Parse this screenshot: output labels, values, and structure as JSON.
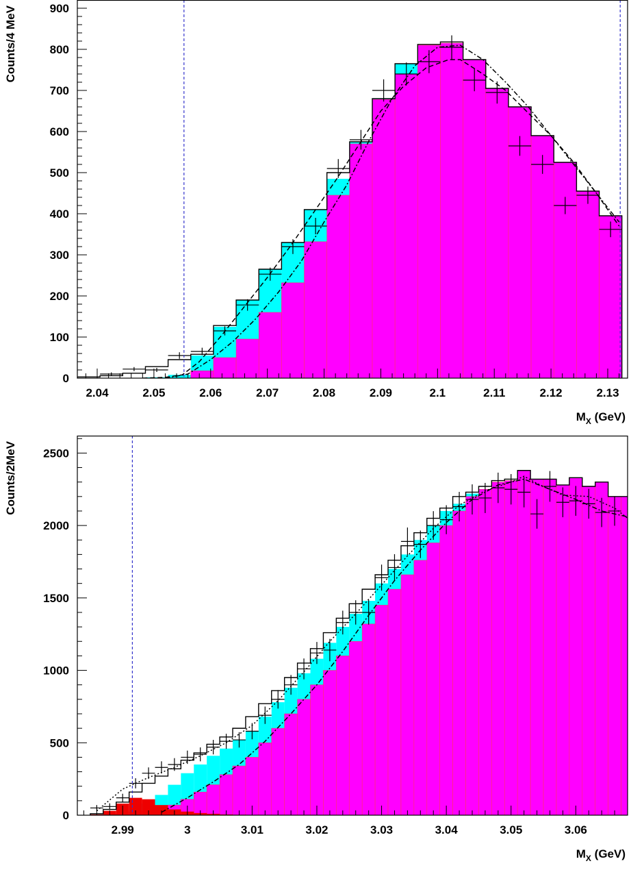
{
  "colors": {
    "signal": "#ff00ff",
    "band": "#00ffff",
    "background": "#ee0000",
    "frame": "#000000",
    "cut_line": "#3333cc"
  },
  "chart_data": [
    {
      "type": "histogram",
      "xlabel": "M",
      "xlabel_sub": "X",
      "xlabel_unit": " (GeV)",
      "ylabel": "Counts/4 MeV",
      "xlim": [
        2.0365,
        2.1335
      ],
      "ylim": [
        0,
        920
      ],
      "xticks": [
        2.04,
        2.05,
        2.06,
        2.07,
        2.08,
        2.09,
        2.1,
        2.11,
        2.12,
        2.13
      ],
      "xtick_labels": [
        "2.04",
        "2.05",
        "2.06",
        "2.07",
        "2.08",
        "2.09",
        "2.1",
        "2.11",
        "2.12",
        "2.13"
      ],
      "yticks": [
        0,
        100,
        200,
        300,
        400,
        500,
        600,
        700,
        800,
        900
      ],
      "ytick_labels": [
        "0",
        "100",
        "200",
        "300",
        "400",
        "500",
        "600",
        "700",
        "800",
        "900"
      ],
      "bin_edges": [
        2.0365,
        2.0405,
        2.0445,
        2.0485,
        2.0525,
        2.0565,
        2.0605,
        2.0645,
        2.0685,
        2.0725,
        2.0765,
        2.0805,
        2.0845,
        2.0885,
        2.0925,
        2.0965,
        2.1005,
        2.1045,
        2.1085,
        2.1125,
        2.1165,
        2.1205,
        2.1245,
        2.1285,
        2.1325
      ],
      "magenta_hist": [
        0,
        0,
        0,
        0,
        0,
        18,
        50,
        95,
        160,
        232,
        332,
        445,
        570,
        678,
        740,
        810,
        815,
        775,
        705,
        660,
        590,
        525,
        455,
        395
      ],
      "cyan_hist": [
        0,
        0,
        0,
        2,
        8,
        55,
        125,
        190,
        265,
        330,
        410,
        485,
        575,
        680,
        765,
        810,
        815,
        775,
        705,
        660,
        590,
        525,
        455,
        395
      ],
      "black_hist": [
        3,
        6,
        12,
        28,
        45,
        58,
        128,
        190,
        265,
        330,
        410,
        500,
        575,
        680,
        765,
        812,
        818,
        775,
        705,
        660,
        590,
        525,
        455,
        395
      ],
      "data_points": {
        "x": [
          2.0425,
          2.0465,
          2.0505,
          2.0545,
          2.0585,
          2.0625,
          2.0665,
          2.0705,
          2.0745,
          2.0785,
          2.0825,
          2.0865,
          2.0905,
          2.0945,
          2.0985,
          2.1025,
          2.1065,
          2.1105,
          2.1145,
          2.1185,
          2.1225,
          2.1265,
          2.1305
        ],
        "y": [
          10,
          22,
          20,
          55,
          65,
          115,
          178,
          253,
          320,
          370,
          510,
          580,
          700,
          740,
          770,
          805,
          725,
          695,
          565,
          520,
          420,
          445,
          362
        ],
        "yerr": [
          4,
          5,
          5,
          8,
          9,
          11,
          14,
          16,
          18,
          20,
          23,
          24,
          27,
          28,
          28,
          29,
          27,
          27,
          24,
          23,
          21,
          21,
          19
        ]
      },
      "fit_dashed": {
        "x": [
          2.048,
          2.052,
          2.055,
          2.058,
          2.062,
          2.066,
          2.07,
          2.074,
          2.078,
          2.082,
          2.086,
          2.09,
          2.094,
          2.098,
          2.102,
          2.104,
          2.108,
          2.112,
          2.116,
          2.12,
          2.124,
          2.128,
          2.132
        ],
        "y": [
          0,
          2,
          8,
          40,
          105,
          175,
          245,
          320,
          400,
          480,
          565,
          650,
          710,
          755,
          775,
          775,
          740,
          700,
          645,
          590,
          525,
          450,
          370
        ]
      },
      "fit_dashdot": {
        "x": [
          2.052,
          2.056,
          2.06,
          2.064,
          2.068,
          2.072,
          2.076,
          2.08,
          2.084,
          2.088,
          2.092,
          2.096,
          2.1,
          2.104,
          2.108,
          2.112,
          2.116,
          2.12,
          2.124,
          2.128,
          2.132
        ],
        "y": [
          0,
          10,
          45,
          90,
          145,
          210,
          285,
          380,
          470,
          580,
          680,
          760,
          805,
          810,
          775,
          720,
          660,
          590,
          520,
          450,
          380
        ]
      },
      "cut_lines": [
        2.0553,
        2.1322
      ]
    },
    {
      "type": "histogram",
      "xlabel": "M",
      "xlabel_sub": "X",
      "xlabel_unit": " (GeV)",
      "ylabel": "Counts/2MeV",
      "xlim": [
        2.983,
        3.068
      ],
      "ylim": [
        0,
        2620
      ],
      "xticks": [
        2.99,
        3.0,
        3.01,
        3.02,
        3.03,
        3.04,
        3.05,
        3.06
      ],
      "xtick_labels": [
        "2.99",
        "3",
        "3.01",
        "3.02",
        "3.03",
        "3.04",
        "3.05",
        "3.06"
      ],
      "yticks": [
        0,
        500,
        1000,
        1500,
        2000,
        2500
      ],
      "ytick_labels": [
        "0",
        "500",
        "1000",
        "1500",
        "2000",
        "2500"
      ],
      "bin_edges": [
        2.985,
        2.987,
        2.989,
        2.991,
        2.993,
        2.995,
        2.997,
        2.999,
        3.001,
        3.003,
        3.005,
        3.007,
        3.009,
        3.011,
        3.013,
        3.015,
        3.017,
        3.019,
        3.021,
        3.023,
        3.025,
        3.027,
        3.029,
        3.031,
        3.033,
        3.035,
        3.037,
        3.039,
        3.041,
        3.043,
        3.045,
        3.047,
        3.049,
        3.051,
        3.053,
        3.055,
        3.057,
        3.059,
        3.061,
        3.063,
        3.065,
        3.067,
        3.069
      ],
      "red_hist": [
        5,
        30,
        80,
        120,
        110,
        70,
        40,
        25,
        15,
        10,
        5,
        3,
        2,
        1,
        0,
        0,
        0,
        0,
        0,
        0,
        0,
        0,
        0,
        0,
        0,
        0,
        0,
        0,
        0,
        0,
        0,
        0,
        0,
        0,
        0,
        0,
        0,
        0,
        0,
        0,
        0,
        0
      ],
      "magenta_hist": [
        0,
        5,
        10,
        20,
        30,
        45,
        70,
        110,
        160,
        210,
        280,
        340,
        400,
        500,
        600,
        700,
        800,
        900,
        1000,
        1100,
        1200,
        1320,
        1450,
        1560,
        1660,
        1760,
        1880,
        2000,
        2100,
        2200,
        2250,
        2300,
        2310,
        2380,
        2320,
        2320,
        2280,
        2330,
        2270,
        2300,
        2200,
        2200
      ],
      "cyan_hist": [
        0,
        5,
        10,
        30,
        80,
        140,
        210,
        290,
        350,
        410,
        460,
        520,
        580,
        680,
        780,
        880,
        980,
        1080,
        1190,
        1300,
        1390,
        1480,
        1600,
        1700,
        1800,
        1900,
        2000,
        2100,
        2150,
        2220,
        2250,
        2300,
        2310,
        2380,
        2320,
        2320,
        2280,
        2330,
        2270,
        2300,
        2200,
        2200
      ],
      "black_hist": [
        10,
        40,
        90,
        160,
        220,
        270,
        320,
        380,
        430,
        490,
        540,
        600,
        680,
        770,
        860,
        950,
        1050,
        1150,
        1260,
        1360,
        1460,
        1560,
        1660,
        1760,
        1860,
        1950,
        2050,
        2120,
        2200,
        2230,
        2270,
        2310,
        2320,
        2380,
        2320,
        2320,
        2280,
        2330,
        2270,
        2300,
        2200,
        2200
      ],
      "data_points": {
        "x": [
          2.986,
          2.988,
          2.99,
          2.992,
          2.994,
          2.996,
          2.998,
          3.0,
          3.002,
          3.004,
          3.006,
          3.008,
          3.01,
          3.012,
          3.014,
          3.016,
          3.018,
          3.02,
          3.022,
          3.024,
          3.026,
          3.028,
          3.03,
          3.032,
          3.034,
          3.036,
          3.038,
          3.04,
          3.042,
          3.044,
          3.046,
          3.048,
          3.05,
          3.052,
          3.054,
          3.056,
          3.058,
          3.06,
          3.062,
          3.064,
          3.066
        ],
        "y": [
          50,
          60,
          120,
          220,
          290,
          330,
          350,
          400,
          420,
          470,
          510,
          520,
          580,
          690,
          800,
          900,
          1010,
          1120,
          1140,
          1330,
          1400,
          1400,
          1640,
          1710,
          1890,
          1870,
          2000,
          2040,
          2130,
          2180,
          2190,
          2260,
          2250,
          2230,
          2080,
          2270,
          2160,
          2170,
          2150,
          2090,
          2100
        ],
        "yerr": [
          20,
          22,
          28,
          35,
          40,
          42,
          44,
          46,
          48,
          50,
          52,
          53,
          56,
          60,
          64,
          68,
          72,
          76,
          77,
          82,
          84,
          84,
          90,
          92,
          96,
          95,
          99,
          100,
          102,
          104,
          104,
          105,
          105,
          105,
          102,
          106,
          103,
          103,
          103,
          101,
          102
        ]
      },
      "fit_dotted": {
        "x": [
          2.986,
          2.99,
          2.994,
          2.998,
          3.002,
          3.006,
          3.01,
          3.014,
          3.018,
          3.022,
          3.026,
          3.03,
          3.034,
          3.038,
          3.042,
          3.046,
          3.05,
          3.052,
          3.054,
          3.058,
          3.062,
          3.066,
          3.068
        ],
        "y": [
          30,
          180,
          260,
          330,
          410,
          500,
          620,
          790,
          990,
          1200,
          1390,
          1590,
          1790,
          1980,
          2140,
          2240,
          2300,
          2340,
          2290,
          2210,
          2200,
          2120,
          2050
        ]
      },
      "fit_dashdot": {
        "x": [
          2.996,
          3.0,
          3.004,
          3.008,
          3.012,
          3.016,
          3.02,
          3.024,
          3.028,
          3.032,
          3.036,
          3.04,
          3.044,
          3.048,
          3.052,
          3.056,
          3.06,
          3.064,
          3.068
        ],
        "y": [
          20,
          120,
          230,
          350,
          510,
          700,
          900,
          1130,
          1380,
          1620,
          1830,
          2020,
          2180,
          2280,
          2320,
          2250,
          2180,
          2100,
          2060
        ]
      },
      "cut_lines": [
        2.9915
      ]
    }
  ]
}
